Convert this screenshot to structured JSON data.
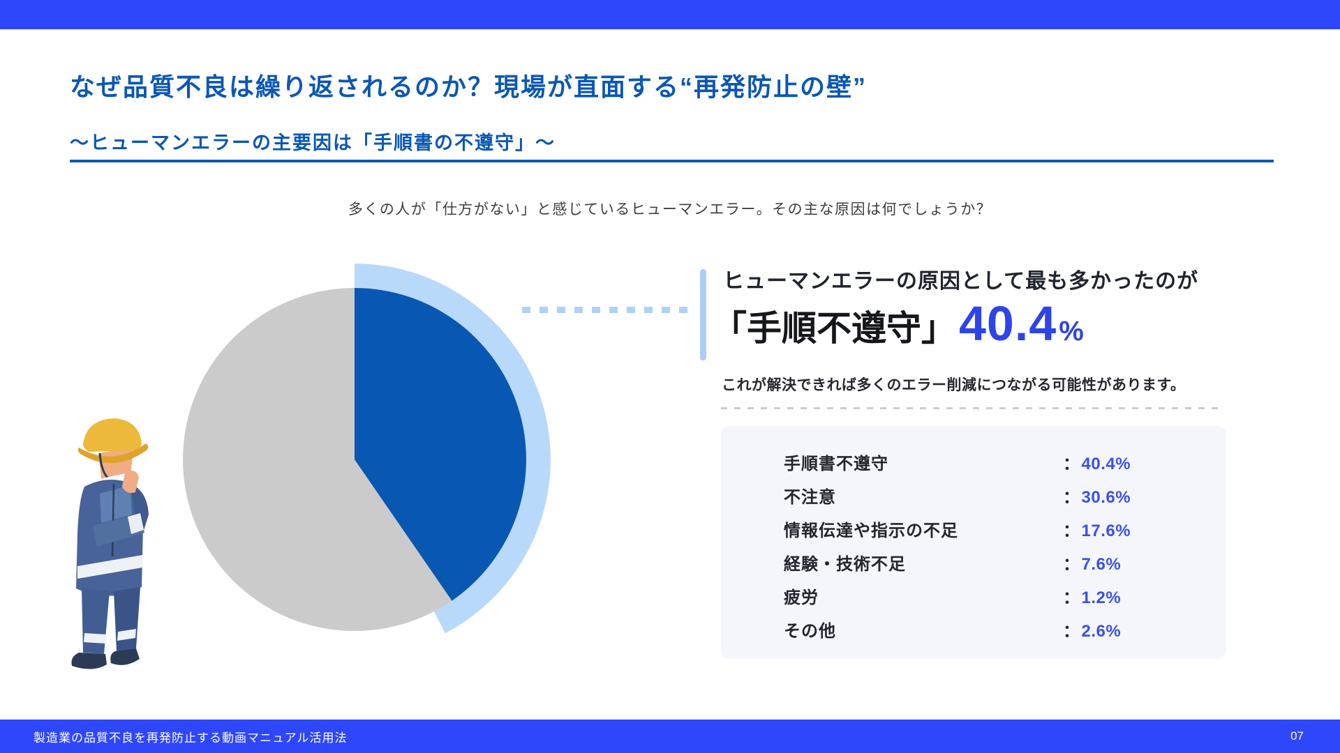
{
  "slide": {
    "title": "なぜ品質不良は繰り返されるのか？現場が直面する“再発防止の壁”",
    "subtitle": "～ヒューマンエラーの主要因は「手順書の不遵守」～",
    "intro": "多くの人が「仕方がない」と感じているヒューマンエラー。その主な原因は何でしょうか？"
  },
  "callout": {
    "headline": "ヒューマンエラーの原因として最も多かったのが",
    "term": "「手順不遵守」",
    "value": "40.4",
    "unit": "%",
    "description": "これが解決できれば多くのエラー削減につながる可能性があります。"
  },
  "breakdown": {
    "colon": "：",
    "rows": [
      {
        "label": "手順書不遵守",
        "value": "40.4%"
      },
      {
        "label": "不注意",
        "value": "30.6%"
      },
      {
        "label": "情報伝達や指示の不足",
        "value": "17.6%"
      },
      {
        "label": "経験・技術不足",
        "value": "7.6%"
      },
      {
        "label": "疲労",
        "value": "1.2%"
      },
      {
        "label": "その他",
        "value": "2.6%"
      }
    ]
  },
  "footer": {
    "text": "製造業の品質不良を再発防止する動画マニュアル活用法",
    "page": "07"
  },
  "chart_data": {
    "type": "pie",
    "title": "ヒューマンエラーの原因",
    "labels": [
      "手順書不遵守",
      "不注意",
      "情報伝達や指示の不足",
      "経験・技術不足",
      "疲労",
      "その他"
    ],
    "values": [
      40.4,
      30.6,
      17.6,
      7.6,
      1.2,
      2.6
    ],
    "highlighted_label": "手順書不遵守",
    "highlighted_value": 40.4,
    "start_angle_deg": 0,
    "direction": "clockwise",
    "legend": "none",
    "note": "Only the top cause (40.4%) is drawn as a dark-blue slice with a light-blue halo arc; all remaining causes are merged into one gray area.",
    "colors": {
      "highlight_slice": "#0857b3",
      "other_slices": "#cbcbcb",
      "halo": "#b9d9fb"
    }
  },
  "colors": {
    "brand_bar": "#2e47fb",
    "title_blue": "#0b57b3",
    "big_number_blue": "#2d44e8",
    "table_value_blue": "#3b50e5",
    "accent_light_blue": "#aecdf4",
    "box_background": "#f4f6fb",
    "dark_text": "#23262e"
  }
}
